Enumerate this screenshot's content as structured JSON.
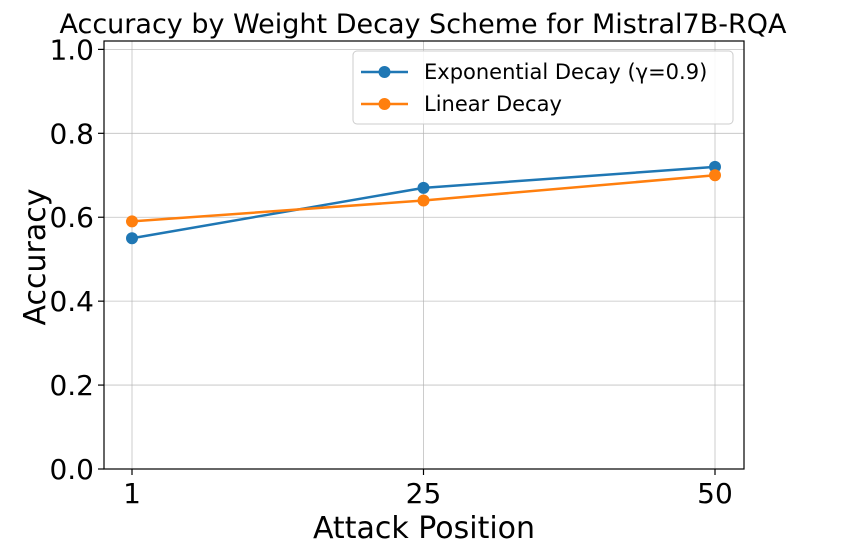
{
  "chart_data": {
    "type": "line",
    "title": "Accuracy by Weight Decay Scheme for Mistral7B-RQA",
    "xlabel": "Attack Position",
    "ylabel": "Accuracy",
    "categories": [
      "1",
      "25",
      "50"
    ],
    "x": [
      1,
      25,
      50
    ],
    "ylim": [
      0.0,
      1.02
    ],
    "yticks": [
      0.0,
      0.2,
      0.4,
      0.6,
      0.8,
      1.0
    ],
    "ytick_labels": [
      "0.0",
      "0.2",
      "0.4",
      "0.6",
      "0.8",
      "1.0"
    ],
    "grid": true,
    "legend_position": "top-right",
    "series": [
      {
        "name": "Exponential Decay (γ=0.9)",
        "values": [
          0.55,
          0.67,
          0.72
        ],
        "color": "#1f77b4",
        "marker": "circle"
      },
      {
        "name": "Linear Decay",
        "values": [
          0.59,
          0.64,
          0.7
        ],
        "color": "#ff7f0e",
        "marker": "circle"
      }
    ]
  }
}
